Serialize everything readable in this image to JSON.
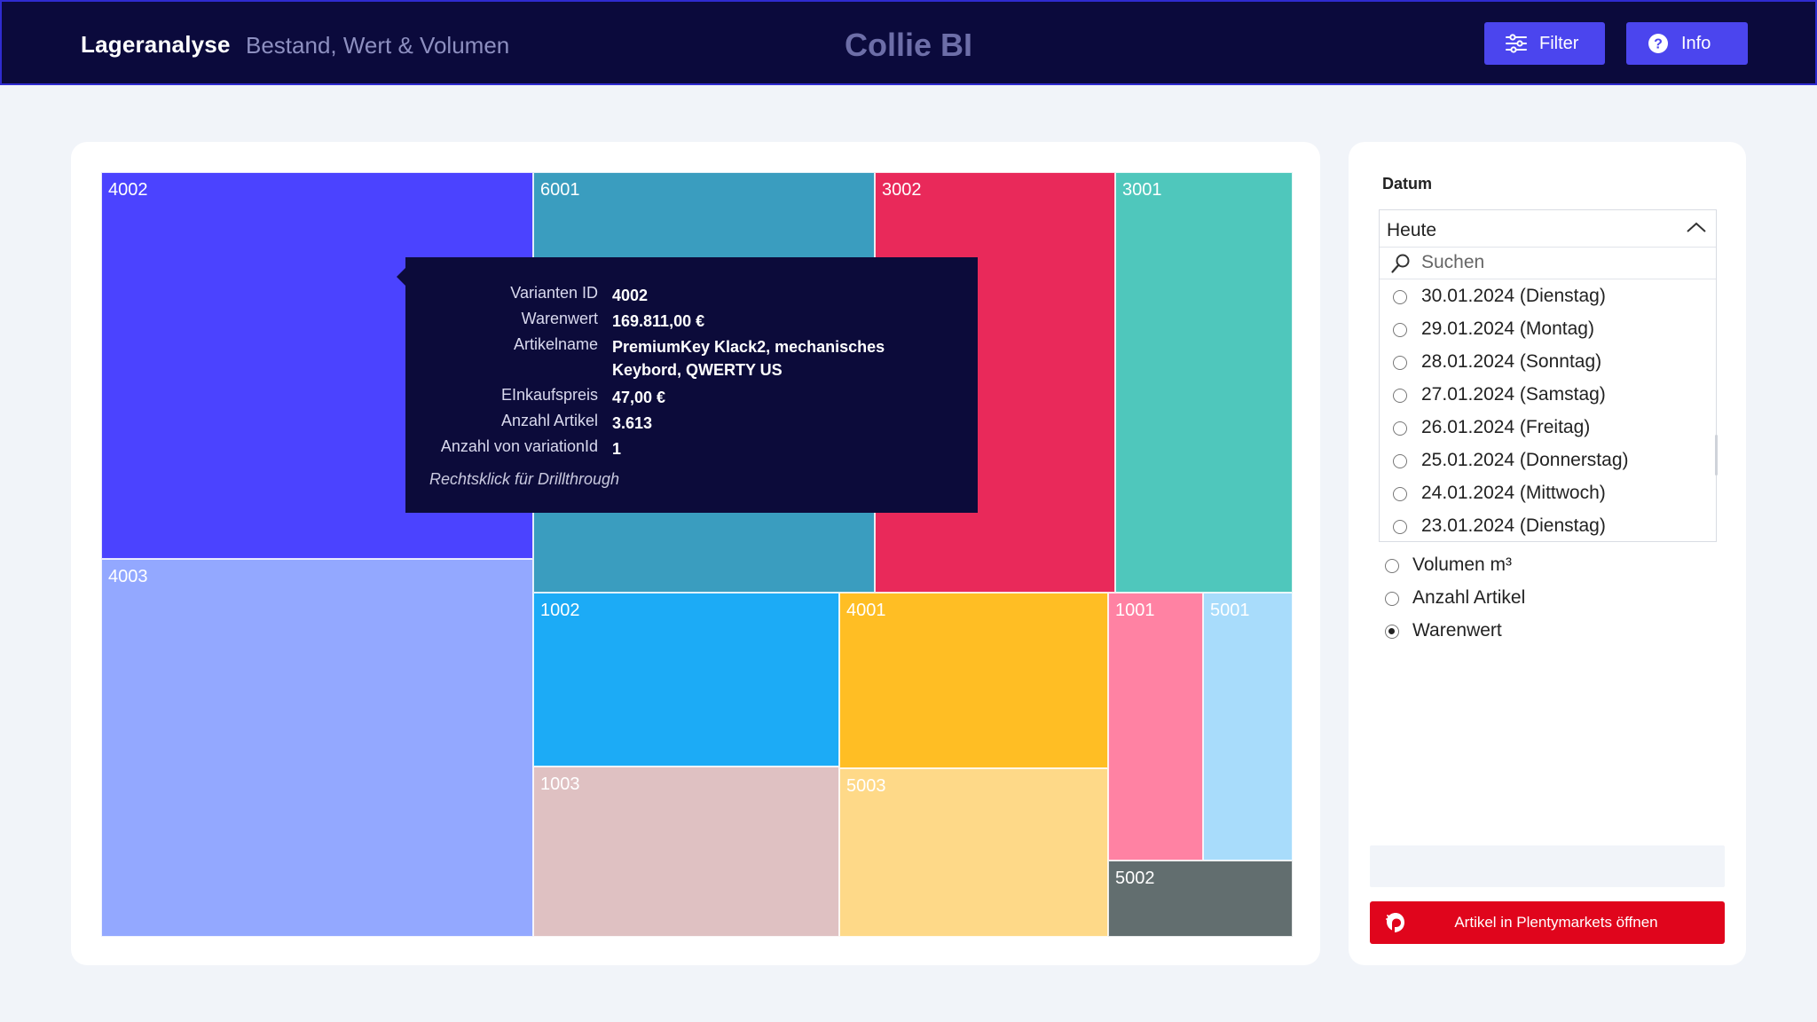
{
  "header": {
    "title": "Lageranalyse",
    "subtitle": "Bestand, Wert & Volumen",
    "brand": "Collie BI",
    "filter_label": "Filter",
    "info_label": "Info"
  },
  "colors": {
    "header_bg": "#0b0a3c",
    "accent": "#4b45ee",
    "brand_red": "#e0051c",
    "page_bg": "#f1f4f9"
  },
  "chart_data": {
    "type": "treemap",
    "measure": "Warenwert",
    "cells": [
      {
        "id": "4002",
        "color": "#4b43ff"
      },
      {
        "id": "4003",
        "color": "#93a8ff"
      },
      {
        "id": "6001",
        "color": "#3a9dbf"
      },
      {
        "id": "3002",
        "color": "#e9295a"
      },
      {
        "id": "3001",
        "color": "#4fc7bc"
      },
      {
        "id": "1002",
        "color": "#1cabf6"
      },
      {
        "id": "1003",
        "color": "#dfc1c2"
      },
      {
        "id": "4001",
        "color": "#ffbe24"
      },
      {
        "id": "5003",
        "color": "#fed988"
      },
      {
        "id": "1001",
        "color": "#ff82a3"
      },
      {
        "id": "5001",
        "color": "#a8dcfb"
      },
      {
        "id": "5002",
        "color": "#626e6f"
      }
    ]
  },
  "tooltip": {
    "rows": [
      {
        "key": "Varianten ID",
        "value": "4002"
      },
      {
        "key": "Warenwert",
        "value": "169.811,00 €"
      },
      {
        "key": "Artikelname",
        "value": "PremiumKey Klack2, mechanisches Keybord, QWERTY US"
      },
      {
        "key": "EInkaufspreis",
        "value": "47,00 €"
      },
      {
        "key": "Anzahl Artikel",
        "value": "3.613"
      },
      {
        "key": "Anzahl von variationId",
        "value": "1"
      }
    ],
    "footer": "Rechtsklick für Drillthrough"
  },
  "date_filter": {
    "label": "Datum",
    "selected": "Heute",
    "search_placeholder": "Suchen",
    "options": [
      "30.01.2024 (Dienstag)",
      "29.01.2024 (Montag)",
      "28.01.2024 (Sonntag)",
      "27.01.2024 (Samstag)",
      "26.01.2024 (Freitag)",
      "25.01.2024 (Donnerstag)",
      "24.01.2024 (Mittwoch)",
      "23.01.2024 (Dienstag)"
    ]
  },
  "measure_options": [
    {
      "label": "Volumen m³",
      "checked": false
    },
    {
      "label": "Anzahl Artikel",
      "checked": false
    },
    {
      "label": "Warenwert",
      "checked": true
    }
  ],
  "plentymarkets_button": "Artikel in Plentymarkets öffnen"
}
